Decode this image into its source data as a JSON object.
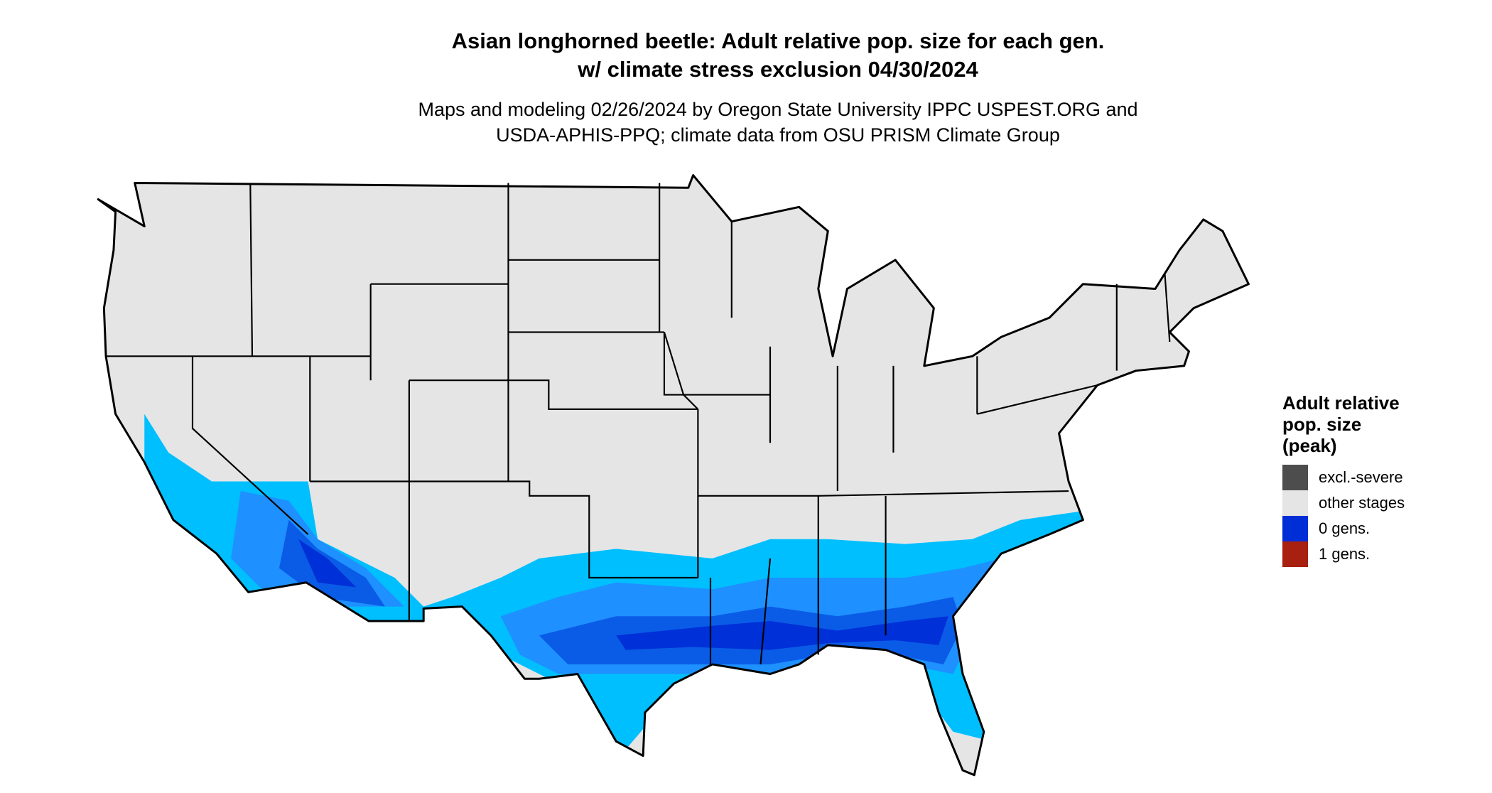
{
  "title": {
    "line1": "Asian longhorned beetle: Adult relative pop. size for each gen.",
    "line2": "w/ climate stress exclusion 04/30/2024"
  },
  "subtitle": {
    "line1": "Maps and modeling 02/26/2024 by Oregon State University IPPC USPEST.ORG and",
    "line2": "USDA-APHIS-PPQ; climate data from OSU PRISM Climate Group"
  },
  "map": {
    "region": "Contiguous United States",
    "base_color": "#e5e5e5",
    "border_color": "#000000",
    "shading_colors": [
      "#00bfff",
      "#1e90ff",
      "#0a5ce6",
      "#0030d8"
    ]
  },
  "legend": {
    "title_lines": [
      "Adult relative",
      "pop. size",
      "(peak)"
    ],
    "items": [
      {
        "label": "excl.-severe",
        "color": "#4d4d4d"
      },
      {
        "label": "other stages",
        "color": "#e5e5e5"
      },
      {
        "label": "0 gens.",
        "color": "#002ed6"
      },
      {
        "label": "1 gens.",
        "color": "#a8200f"
      }
    ]
  }
}
